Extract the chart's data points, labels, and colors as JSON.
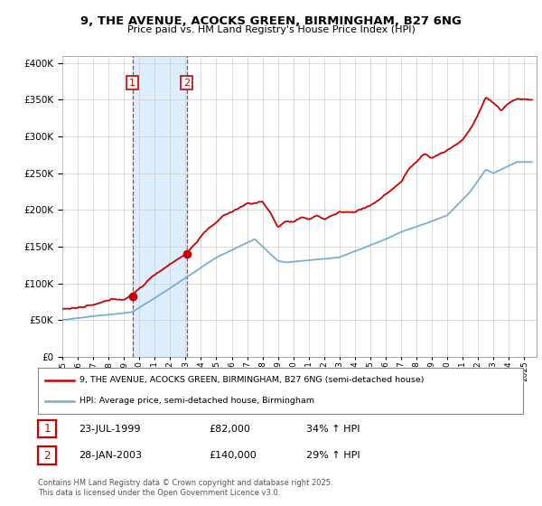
{
  "title": "9, THE AVENUE, ACOCKS GREEN, BIRMINGHAM, B27 6NG",
  "subtitle": "Price paid vs. HM Land Registry's House Price Index (HPI)",
  "legend_line1": "9, THE AVENUE, ACOCKS GREEN, BIRMINGHAM, B27 6NG (semi-detached house)",
  "legend_line2": "HPI: Average price, semi-detached house, Birmingham",
  "footnote": "Contains HM Land Registry data © Crown copyright and database right 2025.\nThis data is licensed under the Open Government Licence v3.0.",
  "sale1_date": "23-JUL-1999",
  "sale1_price": "£82,000",
  "sale1_hpi": "34% ↑ HPI",
  "sale2_date": "28-JAN-2003",
  "sale2_price": "£140,000",
  "sale2_hpi": "29% ↑ HPI",
  "red_color": "#cc0000",
  "blue_color": "#7aadd4",
  "shade_color": "#ddeeff",
  "background_color": "#ffffff",
  "grid_color": "#cccccc",
  "ylim_min": 0,
  "ylim_max": 410000,
  "sale1_x": 1999.55,
  "sale2_x": 2003.08
}
